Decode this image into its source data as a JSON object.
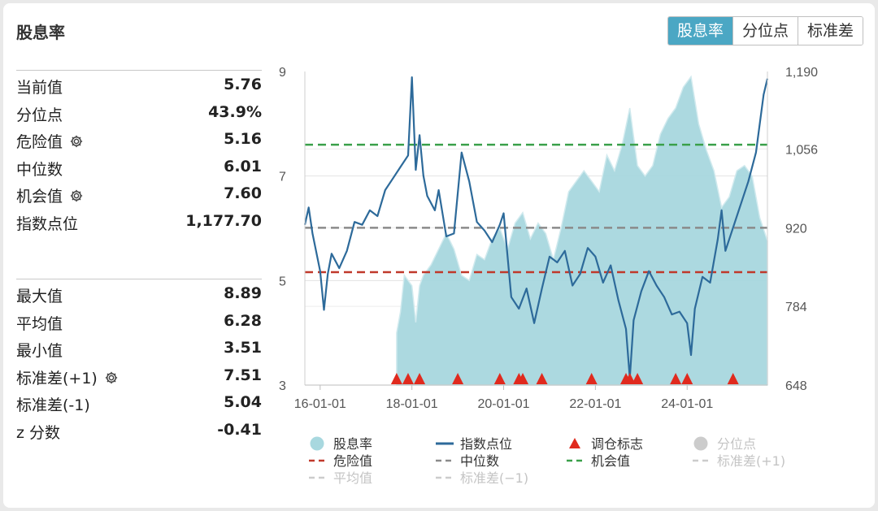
{
  "header": {
    "title": "股息率"
  },
  "tabs": [
    {
      "label": "股息率",
      "active": true
    },
    {
      "label": "分位点",
      "active": false
    },
    {
      "label": "标准差",
      "active": false
    }
  ],
  "stats_primary": [
    {
      "label": "当前值",
      "value": "5.76",
      "gear": false
    },
    {
      "label": "分位点",
      "value": "43.9%",
      "gear": false
    },
    {
      "label": "危险值",
      "value": "5.16",
      "gear": true
    },
    {
      "label": "中位数",
      "value": "6.01",
      "gear": false
    },
    {
      "label": "机会值",
      "value": "7.60",
      "gear": true
    },
    {
      "label": "指数点位",
      "value": "1,177.70",
      "gear": false
    }
  ],
  "stats_secondary": [
    {
      "label": "最大值",
      "value": "8.89",
      "gear": false
    },
    {
      "label": "平均值",
      "value": "6.28",
      "gear": false
    },
    {
      "label": "最小值",
      "value": "3.51",
      "gear": false
    },
    {
      "label": "标准差(+1)",
      "value": "7.51",
      "gear": true
    },
    {
      "label": "标准差(-1)",
      "value": "5.04",
      "gear": false
    },
    {
      "label": "z 分数",
      "value": "-0.41",
      "gear": false
    }
  ],
  "colors": {
    "area": "#a8d8df",
    "area_light": "#cfe9ee",
    "index_line": "#2d6a9a",
    "danger": "#c0392b",
    "median": "#8a8a8a",
    "opportunity": "#3aa04a",
    "marker": "#e02a1e",
    "accent": "#4ba7c4"
  },
  "chart_data": {
    "type": "line",
    "x_ticks": [
      "16-01-01",
      "18-01-01",
      "20-01-01",
      "22-01-01",
      "24-01-01"
    ],
    "y_left_ticks": [
      "9",
      "7",
      "5",
      "3"
    ],
    "y_left_range": [
      3,
      9
    ],
    "y_right_ticks": [
      "1,190",
      "1,056",
      "920",
      "784",
      "648"
    ],
    "y_right_range": [
      648,
      1190
    ],
    "x_range": [
      "2015-09",
      "2025-10"
    ],
    "series": [
      {
        "name": "股息率",
        "kind": "area",
        "axis": "left",
        "points": [
          [
            "2017-09",
            4.0
          ],
          [
            "2017-10",
            4.4
          ],
          [
            "2017-11",
            5.1
          ],
          [
            "2017-12",
            5.0
          ],
          [
            "2018-01",
            4.9
          ],
          [
            "2018-02",
            4.2
          ],
          [
            "2018-03",
            4.9
          ],
          [
            "2018-04",
            5.1
          ],
          [
            "2018-06",
            5.3
          ],
          [
            "2018-08",
            5.6
          ],
          [
            "2018-10",
            5.9
          ],
          [
            "2018-12",
            5.6
          ],
          [
            "2019-02",
            5.1
          ],
          [
            "2019-04",
            5.0
          ],
          [
            "2019-06",
            5.5
          ],
          [
            "2019-08",
            5.4
          ],
          [
            "2019-10",
            5.8
          ],
          [
            "2019-12",
            6.0
          ],
          [
            "2020-02",
            5.6
          ],
          [
            "2020-04",
            6.1
          ],
          [
            "2020-06",
            6.3
          ],
          [
            "2020-08",
            5.8
          ],
          [
            "2020-10",
            6.1
          ],
          [
            "2020-12",
            5.9
          ],
          [
            "2021-02",
            5.4
          ],
          [
            "2021-04",
            6.0
          ],
          [
            "2021-06",
            6.7
          ],
          [
            "2021-08",
            6.9
          ],
          [
            "2021-10",
            7.1
          ],
          [
            "2021-12",
            6.9
          ],
          [
            "2022-02",
            6.7
          ],
          [
            "2022-04",
            7.4
          ],
          [
            "2022-06",
            7.1
          ],
          [
            "2022-08",
            7.6
          ],
          [
            "2022-10",
            8.3
          ],
          [
            "2022-12",
            7.2
          ],
          [
            "2023-02",
            7.0
          ],
          [
            "2023-04",
            7.2
          ],
          [
            "2023-06",
            7.8
          ],
          [
            "2023-08",
            8.1
          ],
          [
            "2023-10",
            8.3
          ],
          [
            "2023-12",
            8.7
          ],
          [
            "2024-02",
            8.9
          ],
          [
            "2024-04",
            8.0
          ],
          [
            "2024-06",
            7.5
          ],
          [
            "2024-08",
            7.1
          ],
          [
            "2024-10",
            6.4
          ],
          [
            "2024-12",
            6.6
          ],
          [
            "2025-02",
            7.1
          ],
          [
            "2025-04",
            7.2
          ],
          [
            "2025-06",
            7.0
          ],
          [
            "2025-08",
            6.2
          ],
          [
            "2025-10",
            5.76
          ]
        ]
      },
      {
        "name": "指数点位",
        "kind": "line",
        "axis": "right",
        "points": [
          [
            "2015-09",
            925
          ],
          [
            "2015-10",
            955
          ],
          [
            "2015-11",
            910
          ],
          [
            "2016-01",
            845
          ],
          [
            "2016-02",
            778
          ],
          [
            "2016-03",
            840
          ],
          [
            "2016-04",
            875
          ],
          [
            "2016-06",
            850
          ],
          [
            "2016-08",
            880
          ],
          [
            "2016-10",
            930
          ],
          [
            "2016-12",
            925
          ],
          [
            "2017-02",
            950
          ],
          [
            "2017-04",
            940
          ],
          [
            "2017-06",
            985
          ],
          [
            "2017-08",
            1005
          ],
          [
            "2017-10",
            1025
          ],
          [
            "2017-12",
            1045
          ],
          [
            "2018-01",
            1180
          ],
          [
            "2018-02",
            1020
          ],
          [
            "2018-03",
            1080
          ],
          [
            "2018-04",
            1010
          ],
          [
            "2018-05",
            975
          ],
          [
            "2018-07",
            950
          ],
          [
            "2018-08",
            985
          ],
          [
            "2018-09",
            945
          ],
          [
            "2018-10",
            905
          ],
          [
            "2018-12",
            910
          ],
          [
            "2019-01",
            980
          ],
          [
            "2019-02",
            1050
          ],
          [
            "2019-04",
            1000
          ],
          [
            "2019-06",
            930
          ],
          [
            "2019-08",
            915
          ],
          [
            "2019-10",
            895
          ],
          [
            "2019-12",
            925
          ],
          [
            "2020-01",
            945
          ],
          [
            "2020-03",
            800
          ],
          [
            "2020-05",
            780
          ],
          [
            "2020-07",
            815
          ],
          [
            "2020-09",
            755
          ],
          [
            "2020-11",
            815
          ],
          [
            "2021-01",
            870
          ],
          [
            "2021-03",
            860
          ],
          [
            "2021-05",
            880
          ],
          [
            "2021-07",
            820
          ],
          [
            "2021-09",
            840
          ],
          [
            "2021-11",
            885
          ],
          [
            "2022-01",
            870
          ],
          [
            "2022-03",
            825
          ],
          [
            "2022-05",
            855
          ],
          [
            "2022-07",
            795
          ],
          [
            "2022-09",
            745
          ],
          [
            "2022-10",
            660
          ],
          [
            "2022-11",
            760
          ],
          [
            "2023-01",
            810
          ],
          [
            "2023-03",
            845
          ],
          [
            "2023-05",
            820
          ],
          [
            "2023-07",
            800
          ],
          [
            "2023-09",
            770
          ],
          [
            "2023-11",
            775
          ],
          [
            "2024-01",
            755
          ],
          [
            "2024-02",
            700
          ],
          [
            "2024-03",
            780
          ],
          [
            "2024-05",
            835
          ],
          [
            "2024-07",
            825
          ],
          [
            "2024-09",
            900
          ],
          [
            "2024-10",
            950
          ],
          [
            "2024-11",
            880
          ],
          [
            "2025-01",
            920
          ],
          [
            "2025-03",
            960
          ],
          [
            "2025-05",
            1000
          ],
          [
            "2025-07",
            1050
          ],
          [
            "2025-09",
            1150
          ],
          [
            "2025-10",
            1177.7
          ]
        ]
      }
    ],
    "reference_lines": [
      {
        "name": "危险值",
        "value": 5.16,
        "color": "#c0392b"
      },
      {
        "name": "中位数",
        "value": 6.01,
        "color": "#8a8a8a"
      },
      {
        "name": "机会值",
        "value": 7.6,
        "color": "#3aa04a"
      }
    ],
    "markers": {
      "name": "调仓标志",
      "dates": [
        "2017-09",
        "2017-12",
        "2018-03",
        "2019-01",
        "2019-12",
        "2020-05",
        "2020-06",
        "2020-11",
        "2021-12",
        "2022-09",
        "2022-10",
        "2022-12",
        "2023-10",
        "2024-01",
        "2025-01"
      ]
    },
    "legend": [
      {
        "label": "股息率",
        "symbol": "circle",
        "color": "#a8d8df",
        "enabled": true
      },
      {
        "label": "指数点位",
        "symbol": "line",
        "color": "#2d6a9a",
        "enabled": true
      },
      {
        "label": "调仓标志",
        "symbol": "triangle",
        "color": "#e02a1e",
        "enabled": true
      },
      {
        "label": "分位点",
        "symbol": "circle",
        "color": "#cccccc",
        "enabled": false
      },
      {
        "label": "危险值",
        "symbol": "dash",
        "color": "#c0392b",
        "enabled": true
      },
      {
        "label": "中位数",
        "symbol": "dash",
        "color": "#8a8a8a",
        "enabled": true
      },
      {
        "label": "机会值",
        "symbol": "dash",
        "color": "#3aa04a",
        "enabled": true
      },
      {
        "label": "标准差(+1)",
        "symbol": "dash",
        "color": "#cccccc",
        "enabled": false
      },
      {
        "label": "平均值",
        "symbol": "dash",
        "color": "#cccccc",
        "enabled": false
      },
      {
        "label": "标准差(−1)",
        "symbol": "dash",
        "color": "#cccccc",
        "enabled": false
      }
    ],
    "legend_position": "bottom",
    "grid": true
  }
}
